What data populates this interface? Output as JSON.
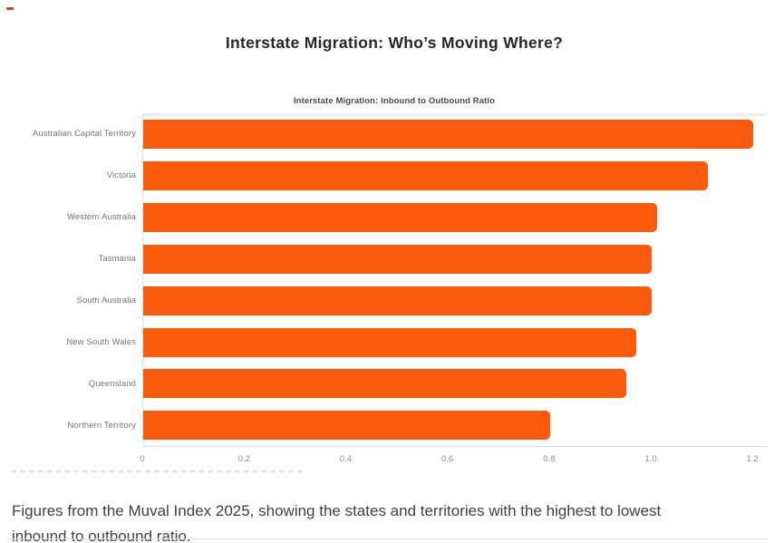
{
  "page": {
    "title": "Interstate Migration: Who’s Moving Where?",
    "caption_lines": [
      "Figures from the Muval Index 2025, showing the states and territories with the highest to lowest",
      "inbound to outbound ratio."
    ],
    "caption_text": "Figures from the Muval Index 2025, showing the states and territories with the highest to lowest inbound to outbound ratio."
  },
  "colors": {
    "bar": "#fa5a0c",
    "corner_mark": "#e0372b",
    "y_axis_line": "#e2e2e2",
    "x_axis_line": "#dcdcdc",
    "plot_top_border": "#ededed",
    "divider": "#e2e2e2"
  },
  "chart_data": {
    "type": "bar",
    "orientation": "horizontal",
    "title": "Interstate Migration: Inbound to Outbound Ratio",
    "categories": [
      "Australian Capital Territory",
      "Victoria",
      "Western Australia",
      "Tasmania",
      "South Australia",
      "New South Wales",
      "Queensland",
      "Northern Territory"
    ],
    "values": [
      1.2,
      1.11,
      1.01,
      1.0,
      1.0,
      0.97,
      0.95,
      0.8
    ],
    "xlabel": "",
    "ylabel": "",
    "xlim": [
      0,
      1.2
    ],
    "x_ticks": [
      0,
      0.2,
      0.4,
      0.6,
      0.8,
      1.0,
      1.2
    ],
    "x_tick_labels": [
      "0",
      "0.2",
      "0.4",
      "0.6",
      "0.8",
      "1.0",
      "1.2"
    ],
    "grid": false,
    "legend": false,
    "bar_color": "#fa5a0c",
    "sort": "highest to lowest"
  }
}
